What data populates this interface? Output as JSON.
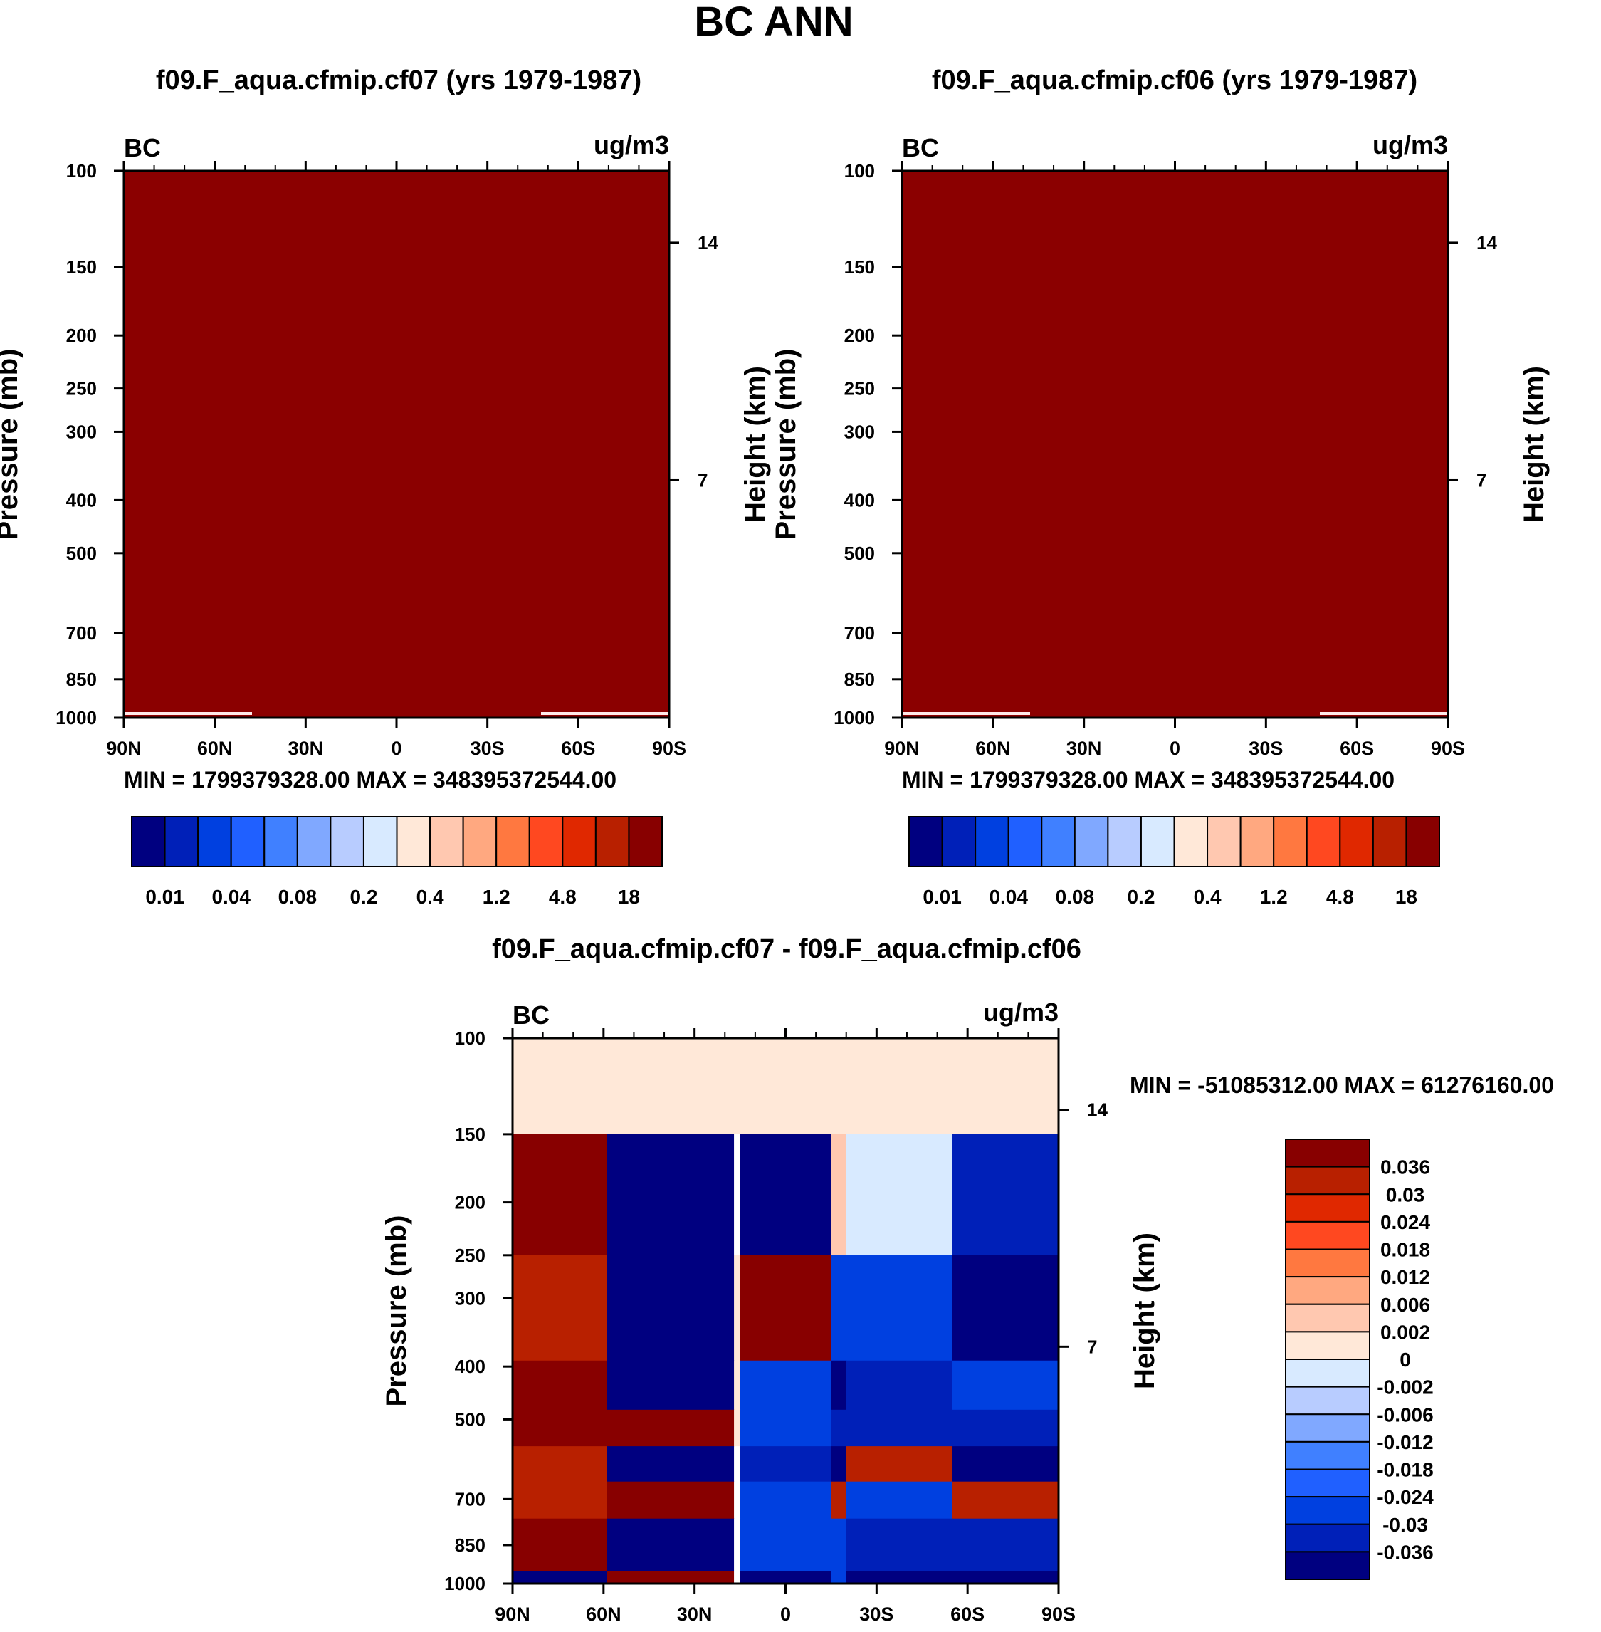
{
  "figure": {
    "title": "BC ANN"
  },
  "chart_data": [
    {
      "type": "heatmap",
      "id": "top-left",
      "title": "f09.F_aqua.cfmip.cf07 (yrs 1979-1987)",
      "variable": "BC",
      "units": "ug/m3",
      "ylabel": "Pressure (mb)",
      "ylabel_right": "Height (km)",
      "x_ticks": [
        "90N",
        "60N",
        "30N",
        "0",
        "30S",
        "60S",
        "90S"
      ],
      "y_ticks": [
        "100",
        "150",
        "200",
        "250",
        "300",
        "400",
        "500",
        "700",
        "850",
        "1000"
      ],
      "y_ticks_right": [
        "14",
        "7"
      ],
      "ylim": [
        1000,
        100
      ],
      "fill": "uniform 18+ (dark red)",
      "stats": "MIN = 1799379328.00   MAX = 348395372544.00",
      "colorbar": {
        "orientation": "horizontal",
        "labels": [
          "0.01",
          "0.04",
          "0.08",
          "0.2",
          "0.4",
          "1.2",
          "4.8",
          "18"
        ],
        "colors": [
          "#000080",
          "#0020b8",
          "#0040e0",
          "#2060ff",
          "#4080ff",
          "#80a8ff",
          "#b8ccff",
          "#d8eaff",
          "#ffe8d8",
          "#ffc8b0",
          "#ffa880",
          "#ff7840",
          "#ff4820",
          "#e02800",
          "#b82000",
          "#880000"
        ]
      }
    },
    {
      "type": "heatmap",
      "id": "top-right",
      "title": "f09.F_aqua.cfmip.cf06 (yrs 1979-1987)",
      "variable": "BC",
      "units": "ug/m3",
      "ylabel": "Pressure (mb)",
      "ylabel_right": "Height (km)",
      "x_ticks": [
        "90N",
        "60N",
        "30N",
        "0",
        "30S",
        "60S",
        "90S"
      ],
      "y_ticks": [
        "100",
        "150",
        "200",
        "250",
        "300",
        "400",
        "500",
        "700",
        "850",
        "1000"
      ],
      "y_ticks_right": [
        "14",
        "7"
      ],
      "ylim": [
        1000,
        100
      ],
      "fill": "uniform 18+ (dark red)",
      "stats": "MIN = 1799379328.00   MAX = 348395372544.00",
      "colorbar": {
        "orientation": "horizontal",
        "labels": [
          "0.01",
          "0.04",
          "0.08",
          "0.2",
          "0.4",
          "1.2",
          "4.8",
          "18"
        ]
      }
    },
    {
      "type": "heatmap",
      "id": "bottom-diff",
      "title": "f09.F_aqua.cfmip.cf07 - f09.F_aqua.cfmip.cf06",
      "variable": "BC",
      "units": "ug/m3",
      "ylabel": "Pressure (mb)",
      "ylabel_right": "Height (km)",
      "x_ticks": [
        "90N",
        "60N",
        "30N",
        "0",
        "30S",
        "60S",
        "90S"
      ],
      "y_ticks": [
        "100",
        "150",
        "200",
        "250",
        "300",
        "400",
        "500",
        "700",
        "850",
        "1000"
      ],
      "y_ticks_right": [
        "14",
        "7"
      ],
      "ylim": [
        1000,
        100
      ],
      "stats": "MIN = -51085312.00   MAX = 61276160.00",
      "colorbar": {
        "orientation": "vertical",
        "labels": [
          "0.036",
          "0.03",
          "0.024",
          "0.018",
          "0.012",
          "0.006",
          "0.002",
          "0",
          "-0.002",
          "-0.006",
          "-0.012",
          "-0.018",
          "-0.024",
          "-0.03",
          "-0.036"
        ],
        "colors": [
          "#880000",
          "#b82000",
          "#e02800",
          "#ff4820",
          "#ff7840",
          "#ffa880",
          "#ffc8b0",
          "#ffe8d8",
          "#d8eaff",
          "#b8ccff",
          "#80a8ff",
          "#4080ff",
          "#2060ff",
          "#0040e0",
          "#0020b8",
          "#000080"
        ]
      },
      "bands": {
        "x_edges": [
          90,
          59,
          17,
          15,
          -15,
          -20,
          -55,
          -90
        ],
        "p_edges": [
          150,
          250,
          390,
          480,
          560,
          650,
          760,
          950,
          1000
        ],
        "band_colors": [
          [
            "#880000",
            "#000080",
            "#ffffff",
            "#000080",
            "#ffc8b0",
            "#d8eaff",
            "#0020b8"
          ],
          [
            "#b82000",
            "#000080",
            "#ffe8d8",
            "#880000",
            "#0040e0",
            "#0040e0",
            "#000080"
          ],
          [
            "#880000",
            "#000080",
            "#ffe8d8",
            "#0040e0",
            "#000080",
            "#0020b8",
            "#0040e0"
          ],
          [
            "#880000",
            "#880000",
            "#ffe8d8",
            "#0040e0",
            "#0020b8",
            "#0020b8",
            "#0020b8"
          ],
          [
            "#b82000",
            "#000080",
            "#ffffff",
            "#0020b8",
            "#000080",
            "#b82000",
            "#000080"
          ],
          [
            "#b82000",
            "#880000",
            "#ffffff",
            "#0040e0",
            "#b82000",
            "#0040e0",
            "#b82000"
          ],
          [
            "#880000",
            "#000080",
            "#ffffff",
            "#0040e0",
            "#0040e0",
            "#0020b8",
            "#0020b8"
          ],
          [
            "#000080",
            "#880000",
            "#ffffff",
            "#000080",
            "#0040e0",
            "#000080",
            "#000080"
          ]
        ],
        "top_fill": "#ffe8d8"
      }
    }
  ]
}
